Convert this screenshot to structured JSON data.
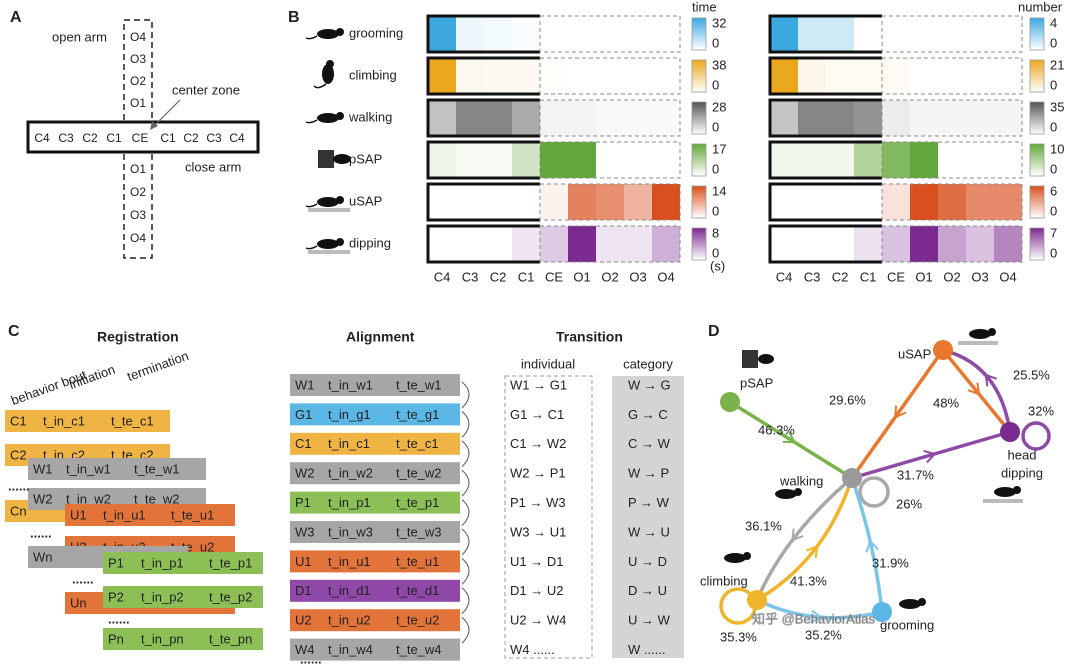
{
  "panel_a": {
    "label": "A",
    "open_arm": "open arm",
    "center_zone": "center zone",
    "close_arm": "close arm",
    "top_zones": [
      "O4",
      "O3",
      "O2",
      "O1"
    ],
    "row_zones": [
      "C4",
      "C3",
      "C2",
      "C1",
      "CE",
      "C1",
      "C2",
      "C3",
      "C4"
    ],
    "bottom_zones": [
      "O1",
      "O2",
      "O3",
      "O4"
    ]
  },
  "panel_b": {
    "label": "B",
    "columns": [
      "C4",
      "C3",
      "C2",
      "C1",
      "CE",
      "O1",
      "O2",
      "O3",
      "O4"
    ],
    "behaviors": [
      {
        "name": "grooming",
        "color": "#3ba9e0"
      },
      {
        "name": "climbing",
        "color": "#eba81f"
      },
      {
        "name": "walking",
        "color": "#555555"
      },
      {
        "name": "pSAP",
        "color": "#62a83a"
      },
      {
        "name": "uSAP",
        "color": "#d9501e"
      },
      {
        "name": "dipping",
        "color": "#7b2a8f"
      }
    ],
    "heatmaps": [
      {
        "title": "time",
        "unit": "(s)",
        "scales": [
          {
            "max": 32,
            "min": 0
          },
          {
            "max": 38,
            "min": 0
          },
          {
            "max": 28,
            "min": 0
          },
          {
            "max": 17,
            "min": 0
          },
          {
            "max": 14,
            "min": 0
          },
          {
            "max": 8,
            "min": 0
          }
        ],
        "values": [
          [
            32,
            3,
            2,
            1,
            0,
            0,
            0,
            0,
            0
          ],
          [
            38,
            3,
            2,
            2,
            1,
            0,
            0,
            0,
            0
          ],
          [
            10,
            20,
            20,
            14,
            2,
            2,
            1,
            1,
            1
          ],
          [
            2,
            1,
            1,
            5,
            17,
            17,
            0,
            0,
            0
          ],
          [
            0,
            0,
            0,
            0,
            1,
            10,
            9,
            6,
            14
          ],
          [
            0,
            0,
            0,
            1,
            2,
            8,
            1,
            1,
            3
          ]
        ]
      },
      {
        "title": "number",
        "scales": [
          {
            "max": 4,
            "min": 0
          },
          {
            "max": 21,
            "min": 0
          },
          {
            "max": 35,
            "min": 0
          },
          {
            "max": 10,
            "min": 0
          },
          {
            "max": 6,
            "min": 0
          },
          {
            "max": 7,
            "min": 0
          }
        ],
        "values": [
          [
            4,
            1,
            1,
            0,
            0,
            0,
            0,
            0,
            0
          ],
          [
            21,
            2,
            1,
            1,
            1,
            0,
            0,
            0,
            0
          ],
          [
            12,
            25,
            25,
            22,
            4,
            2,
            2,
            2,
            2
          ],
          [
            1,
            1,
            1,
            5,
            8,
            10,
            0,
            0,
            0
          ],
          [
            0,
            0,
            0,
            0,
            1,
            6,
            5,
            4,
            4
          ],
          [
            0,
            0,
            0,
            1,
            2,
            7,
            3,
            2,
            4
          ]
        ]
      }
    ]
  },
  "panel_c": {
    "label": "C",
    "registration": {
      "title": "Registration",
      "headers": [
        "behavior bout",
        "initiation",
        "termination"
      ],
      "bars": [
        {
          "id": "C1",
          "start": "t_in_c1",
          "end": "t_te_c1",
          "color": "#f0b444"
        },
        {
          "id": "C2",
          "start": "t_in_c2",
          "end": "t_te_c2",
          "color": "#f0b444"
        },
        {
          "id": "W1",
          "start": "t_in_w1",
          "end": "t_te_w1",
          "color": "#a6a6a6"
        },
        {
          "id": "Cn",
          "color": "#f0b444"
        },
        {
          "id": "W2",
          "start": "t_in_w2",
          "end": "t_te_w2",
          "color": "#a6a6a6"
        },
        {
          "id": "U1",
          "start": "t_in_u1",
          "end": "t_te_u1",
          "color": "#e2743a"
        },
        {
          "id": "U2",
          "start": "t_in_u2",
          "end": "t_te_u2",
          "color": "#e2743a"
        },
        {
          "id": "Wn",
          "color": "#a6a6a6"
        },
        {
          "id": "P1",
          "start": "t_in_p1",
          "end": "t_te_p1",
          "color": "#8cc056"
        },
        {
          "id": "Un",
          "color": "#e2743a"
        },
        {
          "id": "P2",
          "start": "t_in_p2",
          "end": "t_te_p2",
          "color": "#8cc056"
        },
        {
          "id": "Pn",
          "start": "t_in_pn",
          "end": "t_te_pn",
          "color": "#8cc056"
        }
      ],
      "gaps": [
        "......",
        "......",
        "......",
        "......"
      ]
    },
    "alignment": {
      "title": "Alignment",
      "bars": [
        {
          "id": "W1",
          "start": "t_in_w1",
          "end": "t_te_w1",
          "color": "#a6a6a6"
        },
        {
          "id": "G1",
          "start": "t_in_g1",
          "end": "t_te_g1",
          "color": "#5bb8e6"
        },
        {
          "id": "C1",
          "start": "t_in_c1",
          "end": "t_te_c1",
          "color": "#f0b444"
        },
        {
          "id": "W2",
          "start": "t_in_w2",
          "end": "t_te_w2",
          "color": "#a6a6a6"
        },
        {
          "id": "P1",
          "start": "t_in_p1",
          "end": "t_te_p1",
          "color": "#8cc056"
        },
        {
          "id": "W3",
          "start": "t_in_w3",
          "end": "t_te_w3",
          "color": "#a6a6a6"
        },
        {
          "id": "U1",
          "start": "t_in_u1",
          "end": "t_te_u1",
          "color": "#e2743a"
        },
        {
          "id": "D1",
          "start": "t_in_d1",
          "end": "t_te_d1",
          "color": "#9049a8"
        },
        {
          "id": "U2",
          "start": "t_in_u2",
          "end": "t_te_u2",
          "color": "#e2743a"
        },
        {
          "id": "W4",
          "start": "t_in_w4",
          "end": "t_te_w4",
          "color": "#a6a6a6"
        }
      ],
      "more": "......"
    },
    "transition": {
      "title": "Transition",
      "headers": [
        "individual",
        "category"
      ],
      "individual": [
        "W1 → G1",
        "G1 → C1",
        "C1 → W2",
        "W2 → P1",
        "P1 → W3",
        "W3 → U1",
        "U1 → D1",
        "D1 → U2",
        "U2 → W4",
        "W4 ......"
      ],
      "category": [
        "W → G",
        "G → C",
        "C → W",
        "W → P",
        "P → W",
        "W → U",
        "U → D",
        "D → U",
        "U → W",
        "W ......"
      ]
    }
  },
  "panel_d": {
    "label": "D",
    "nodes": [
      {
        "label": "uSAP",
        "color": "#e8782e"
      },
      {
        "label": "pSAP",
        "color": "#7cb24a"
      },
      {
        "label": "walking",
        "color": "#9a9a9a"
      },
      {
        "label_lines": [
          "head",
          "dipping"
        ],
        "color": "#7b2a8f"
      },
      {
        "label": "climbing",
        "color": "#f0b42a"
      },
      {
        "label": "grooming",
        "color": "#5bb8e6"
      }
    ],
    "edges": [
      {
        "label": "46.3%",
        "color": "#7cb24a"
      },
      {
        "label": "29.6%",
        "color": "#e8782e"
      },
      {
        "label": "48%",
        "color": "#e8782e"
      },
      {
        "label": "25.5%",
        "color": "#8e4aa6"
      },
      {
        "label": "32%",
        "color": "#8e4aa6"
      },
      {
        "label": "31.7%",
        "color": "#8e4aa6"
      },
      {
        "label": "26%",
        "color": "#a8a8a8"
      },
      {
        "label": "36.1%",
        "color": "#a8a8a8"
      },
      {
        "label": "41.3%",
        "color": "#f0b42a"
      },
      {
        "label": "31.9%",
        "color": "#7cc4ea"
      },
      {
        "label": "35.3%",
        "color": "#f0b42a"
      },
      {
        "label": "35.2%",
        "color": "#7cc4ea"
      }
    ],
    "watermark": "知乎 @BehaviorAtlas"
  }
}
